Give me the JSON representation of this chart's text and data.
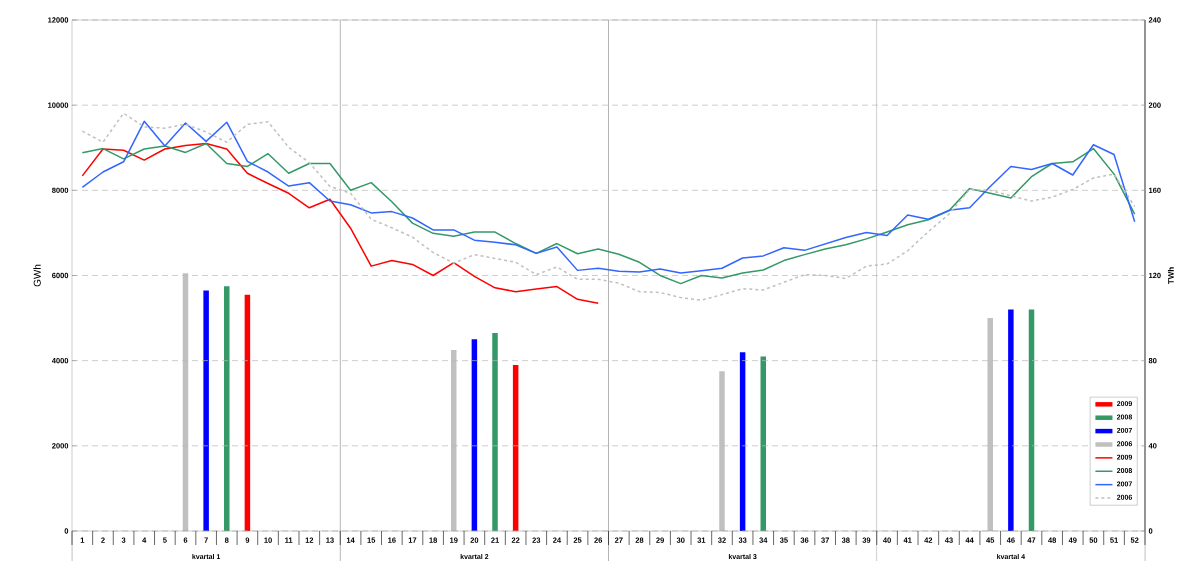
{
  "chart_data": {
    "type": "line",
    "ylabel": "GWh",
    "y2label": "TWh",
    "xlim": [
      0.5,
      52.5
    ],
    "xticks": [
      1,
      2,
      3,
      4,
      5,
      6,
      7,
      8,
      9,
      10,
      11,
      12,
      13,
      14,
      15,
      16,
      17,
      18,
      19,
      20,
      21,
      22,
      23,
      24,
      25,
      26,
      27,
      28,
      29,
      30,
      31,
      32,
      33,
      34,
      35,
      36,
      37,
      38,
      39,
      40,
      41,
      42,
      43,
      44,
      45,
      46,
      47,
      48,
      49,
      50,
      51,
      52
    ],
    "ylim": [
      0,
      12000
    ],
    "yticks": [
      0,
      2000,
      4000,
      6000,
      8000,
      10000,
      12000
    ],
    "y2lim": [
      0,
      240
    ],
    "y2ticks": [
      0,
      40,
      80,
      120,
      160,
      200,
      240
    ],
    "grid": "y",
    "legend": "bottom right",
    "ref_lines": [
      {
        "axis": "x",
        "value": 13.5,
        "color": "#a0a0a0"
      },
      {
        "axis": "x",
        "value": 26.5,
        "color": "#a0a0a0"
      },
      {
        "axis": "x",
        "value": 39.5,
        "color": "#a0a0a0"
      }
    ],
    "annotations": [
      "kvartal 1",
      "kvartal 2",
      "kvartal 3",
      "kvartal 4"
    ],
    "series": [
      {
        "name": "2009",
        "type": "bar",
        "axis": "y2",
        "color": "#ff0000",
        "x": [
          9,
          22
        ],
        "values": [
          111,
          78
        ]
      },
      {
        "name": "2008",
        "type": "bar",
        "axis": "y2",
        "color": "#339966",
        "x": [
          8,
          21,
          34,
          47
        ],
        "values": [
          115,
          93,
          82,
          104
        ]
      },
      {
        "name": "2007",
        "type": "bar",
        "axis": "y2",
        "color": "#0000ff",
        "x": [
          7,
          20,
          33,
          46
        ],
        "values": [
          113,
          90,
          84,
          104
        ]
      },
      {
        "name": "2006",
        "type": "bar",
        "axis": "y2",
        "color": "#c0c0c0",
        "x": [
          6,
          19,
          32,
          45
        ],
        "values": [
          121,
          85,
          75,
          100
        ]
      },
      {
        "name": "2009",
        "color": "#ff0000",
        "x": [
          1,
          2,
          3,
          4,
          5,
          6,
          7,
          8,
          9,
          10,
          11,
          12,
          13,
          14,
          15,
          16,
          17,
          18,
          19,
          20,
          21,
          22,
          23,
          24,
          25,
          26
        ],
        "values": [
          8340,
          8970,
          8940,
          8710,
          8970,
          9050,
          9100,
          8970,
          8400,
          8160,
          7930,
          7590,
          7790,
          7110,
          6220,
          6350,
          6260,
          6000,
          6300,
          5980,
          5710,
          5620,
          5680,
          5740,
          5440,
          5350
        ]
      },
      {
        "name": "2008",
        "color": "#339966",
        "x": [
          1,
          2,
          3,
          4,
          5,
          6,
          7,
          8,
          9,
          10,
          11,
          12,
          13,
          14,
          15,
          16,
          17,
          18,
          19,
          20,
          21,
          22,
          23,
          24,
          25,
          26,
          27,
          28,
          29,
          30,
          31,
          32,
          33,
          34,
          35,
          36,
          37,
          38,
          39,
          40,
          41,
          42,
          43,
          44,
          45,
          46,
          47,
          48,
          49,
          50,
          51,
          52
        ],
        "values": [
          8880,
          8980,
          8740,
          8970,
          9040,
          8890,
          9100,
          8630,
          8560,
          8860,
          8400,
          8630,
          8630,
          8000,
          8180,
          7730,
          7230,
          6990,
          6920,
          7020,
          7020,
          6750,
          6520,
          6750,
          6510,
          6620,
          6500,
          6310,
          6000,
          5810,
          6000,
          5940,
          6060,
          6130,
          6350,
          6490,
          6620,
          6720,
          6860,
          7020,
          7190,
          7310,
          7520,
          8040,
          7930,
          7820,
          8320,
          8630,
          8670,
          8980,
          8380,
          7440
        ]
      },
      {
        "name": "2007",
        "color": "#3366ff",
        "x": [
          1,
          2,
          3,
          4,
          5,
          6,
          7,
          8,
          9,
          10,
          11,
          12,
          13,
          14,
          15,
          16,
          17,
          18,
          19,
          20,
          21,
          22,
          23,
          24,
          25,
          26,
          27,
          28,
          29,
          30,
          31,
          32,
          33,
          34,
          35,
          36,
          37,
          38,
          39,
          40,
          41,
          42,
          43,
          44,
          45,
          46,
          47,
          48,
          49,
          50,
          51,
          52
        ],
        "values": [
          8070,
          8430,
          8670,
          9620,
          9040,
          9580,
          9150,
          9600,
          8680,
          8430,
          8100,
          8180,
          7750,
          7660,
          7470,
          7500,
          7350,
          7070,
          7070,
          6830,
          6780,
          6720,
          6520,
          6670,
          6120,
          6170,
          6100,
          6080,
          6150,
          6060,
          6110,
          6170,
          6410,
          6460,
          6650,
          6590,
          6740,
          6890,
          7010,
          6940,
          7420,
          7320,
          7530,
          7590,
          8090,
          8560,
          8490,
          8630,
          8360,
          9070,
          8840,
          7260
        ]
      },
      {
        "name": "2006",
        "line_style": "dashed",
        "color": "#c0c0c0",
        "x": [
          1,
          2,
          3,
          4,
          5,
          6,
          7,
          8,
          9,
          10,
          11,
          12,
          13,
          14,
          15,
          16,
          17,
          18,
          19,
          20,
          21,
          22,
          23,
          24,
          25,
          26,
          27,
          28,
          29,
          30,
          31,
          32,
          33,
          34,
          35,
          36,
          37,
          38,
          39,
          40,
          41,
          42,
          43,
          44,
          45,
          46,
          47,
          48,
          49,
          50,
          51,
          52
        ],
        "values": [
          9390,
          9130,
          9810,
          9490,
          9460,
          9550,
          9370,
          9130,
          9550,
          9610,
          9010,
          8650,
          8090,
          7930,
          7320,
          7120,
          6900,
          6540,
          6290,
          6490,
          6400,
          6310,
          6020,
          6200,
          5910,
          5910,
          5820,
          5620,
          5600,
          5480,
          5420,
          5550,
          5690,
          5660,
          5840,
          6020,
          6000,
          5930,
          6220,
          6270,
          6580,
          7030,
          7440,
          8020,
          8000,
          7870,
          7750,
          7840,
          8020,
          8290,
          8380,
          7620
        ]
      }
    ]
  }
}
